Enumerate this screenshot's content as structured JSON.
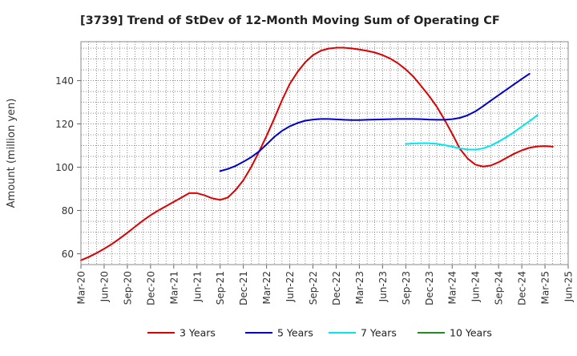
{
  "chart_data": {
    "type": "line",
    "title": "[3739]  Trend of StDev of 12-Month Moving Sum of Operating CF",
    "xlabel": "",
    "ylabel": "Amount (million yen)",
    "ylim": [
      55,
      158
    ],
    "y_ticks": [
      60,
      80,
      100,
      120,
      140
    ],
    "x_ticks": [
      "Mar-20",
      "Jun-20",
      "Sep-20",
      "Dec-20",
      "Mar-21",
      "Jun-21",
      "Sep-21",
      "Dec-21",
      "Mar-22",
      "Jun-22",
      "Sep-22",
      "Dec-22",
      "Mar-23",
      "Jun-23",
      "Sep-23",
      "Dec-23",
      "Mar-24",
      "Jun-24",
      "Sep-24",
      "Dec-24",
      "Mar-25",
      "Jun-25"
    ],
    "x_start": "Mar-20",
    "x_end": "Jun-25",
    "grid": true,
    "legend_position": "bottom",
    "series": [
      {
        "name": "3 Years",
        "color": "#dd0000",
        "start": "Mar-20",
        "values": [
          57.0,
          58.5,
          60.3,
          62.3,
          64.5,
          67.0,
          69.7,
          72.5,
          75.3,
          77.8,
          80.0,
          82.0,
          84.0,
          86.0,
          88.0,
          88.0,
          87.0,
          85.6,
          84.9,
          86.0,
          89.5,
          94.0,
          100.0,
          107.0,
          114.5,
          122.5,
          131.0,
          138.5,
          144.0,
          148.5,
          151.8,
          153.8,
          154.8,
          155.2,
          155.2,
          154.9,
          154.4,
          153.8,
          153.0,
          151.8,
          150.2,
          148.0,
          145.2,
          141.8,
          137.5,
          133.0,
          128.0,
          122.0,
          115.5,
          108.5,
          104.0,
          101.2,
          100.3,
          100.8,
          102.3,
          104.3,
          106.2,
          107.8,
          109.0,
          109.6,
          109.8,
          109.5
        ]
      },
      {
        "name": "5 Years",
        "color": "#0000cc",
        "start": "Sep-21",
        "values": [
          98.2,
          99.2,
          100.6,
          102.5,
          104.6,
          107.2,
          110.5,
          114.0,
          116.8,
          118.9,
          120.4,
          121.5,
          122.0,
          122.3,
          122.3,
          122.1,
          121.9,
          121.8,
          121.8,
          121.9,
          122.0,
          122.1,
          122.2,
          122.3,
          122.3,
          122.3,
          122.2,
          122.0,
          121.9,
          121.9,
          122.2,
          122.8,
          124.0,
          125.8,
          128.2,
          130.8,
          133.3,
          135.8,
          138.3,
          140.8,
          143.2
        ]
      },
      {
        "name": "7 Years",
        "color": "#00e5ee",
        "start": "Sep-23",
        "values": [
          110.7,
          111.0,
          111.1,
          111.1,
          110.8,
          110.2,
          109.5,
          108.7,
          108.2,
          108.1,
          108.7,
          110.0,
          111.8,
          113.9,
          116.2,
          118.8,
          121.3,
          124.0
        ]
      },
      {
        "name": "10 Years",
        "color": "#228b22",
        "start": "Mar-20",
        "values": []
      }
    ]
  }
}
